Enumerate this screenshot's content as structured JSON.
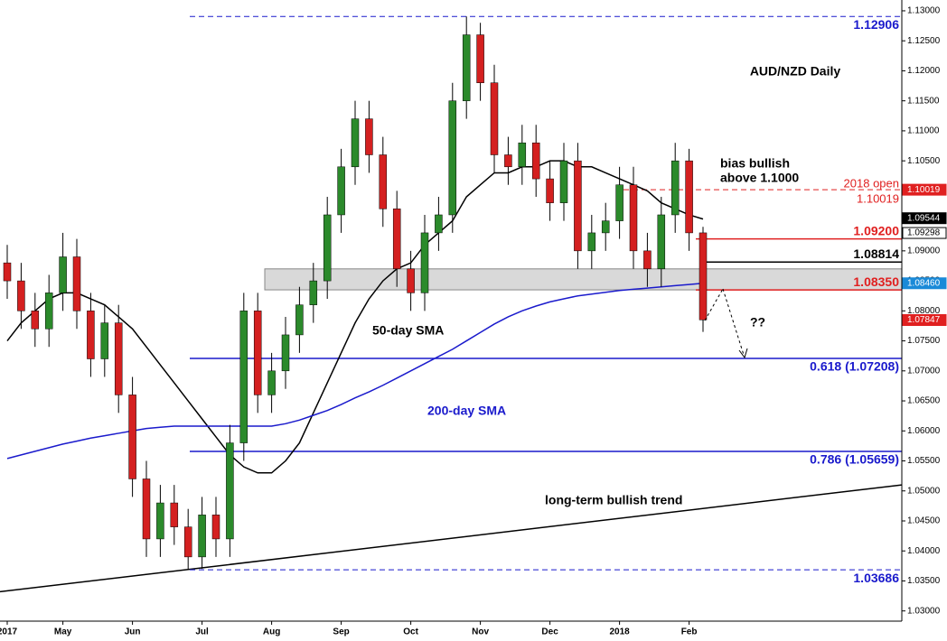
{
  "chart_data": {
    "type": "candlestick",
    "title": "AUD/NZD Daily",
    "categories": [
      "2017",
      null,
      null,
      null,
      "May",
      null,
      null,
      null,
      null,
      "Jun",
      null,
      null,
      null,
      null,
      "Jul",
      null,
      null,
      null,
      null,
      "Aug",
      null,
      null,
      null,
      null,
      "Sep",
      null,
      null,
      null,
      null,
      "Oct",
      null,
      null,
      null,
      null,
      "Nov",
      null,
      null,
      null,
      null,
      "Dec",
      null,
      null,
      null,
      null,
      "2018",
      null,
      null,
      null,
      null,
      "Feb",
      null
    ],
    "open": [
      1.088,
      1.085,
      1.08,
      1.077,
      1.083,
      1.089,
      1.08,
      1.072,
      1.078,
      1.066,
      1.052,
      1.042,
      1.048,
      1.044,
      1.039,
      1.046,
      1.042,
      1.058,
      1.08,
      1.066,
      1.07,
      1.076,
      1.081,
      1.085,
      1.096,
      1.104,
      1.112,
      1.106,
      1.097,
      1.087,
      1.083,
      1.093,
      1.096,
      1.115,
      1.126,
      1.118,
      1.106,
      1.104,
      1.108,
      1.102,
      1.098,
      1.105,
      1.09,
      1.093,
      1.095,
      1.101,
      1.09,
      1.087,
      1.096,
      1.105,
      1.093
    ],
    "high": [
      1.091,
      1.088,
      1.083,
      1.086,
      1.093,
      1.092,
      1.083,
      1.081,
      1.081,
      1.069,
      1.055,
      1.051,
      1.051,
      1.047,
      1.049,
      1.049,
      1.061,
      1.083,
      1.083,
      1.073,
      1.079,
      1.084,
      1.088,
      1.099,
      1.107,
      1.115,
      1.115,
      1.109,
      1.1,
      1.09,
      1.096,
      1.099,
      1.118,
      1.12906,
      1.128,
      1.121,
      1.109,
      1.111,
      1.111,
      1.105,
      1.108,
      1.108,
      1.096,
      1.098,
      1.104,
      1.104,
      1.093,
      1.099,
      1.108,
      1.107,
      1.094
    ],
    "low": [
      1.082,
      1.077,
      1.074,
      1.074,
      1.08,
      1.077,
      1.069,
      1.069,
      1.063,
      1.049,
      1.039,
      1.039,
      1.041,
      1.03686,
      1.037,
      1.039,
      1.039,
      1.055,
      1.063,
      1.063,
      1.067,
      1.073,
      1.078,
      1.082,
      1.093,
      1.101,
      1.103,
      1.094,
      1.084,
      1.08,
      1.08,
      1.09,
      1.093,
      1.112,
      1.115,
      1.103,
      1.101,
      1.101,
      1.099,
      1.095,
      1.095,
      1.087,
      1.087,
      1.09,
      1.092,
      1.087,
      1.084,
      1.084,
      1.093,
      1.09,
      1.0765
    ],
    "close": [
      1.085,
      1.08,
      1.077,
      1.083,
      1.089,
      1.08,
      1.072,
      1.078,
      1.066,
      1.052,
      1.042,
      1.048,
      1.044,
      1.039,
      1.046,
      1.042,
      1.058,
      1.08,
      1.066,
      1.07,
      1.076,
      1.081,
      1.085,
      1.096,
      1.104,
      1.112,
      1.106,
      1.097,
      1.087,
      1.083,
      1.093,
      1.096,
      1.115,
      1.126,
      1.118,
      1.106,
      1.104,
      1.108,
      1.102,
      1.098,
      1.105,
      1.09,
      1.093,
      1.095,
      1.101,
      1.09,
      1.087,
      1.096,
      1.105,
      1.093,
      1.0785
    ],
    "up_color": "#2b8a2b",
    "down_color": "#d42020",
    "series": [
      {
        "name": "50-day SMA",
        "color": "#000000",
        "values": [
          1.075,
          1.078,
          1.08,
          1.082,
          1.083,
          1.083,
          1.082,
          1.081,
          1.079,
          1.077,
          1.074,
          1.071,
          1.068,
          1.065,
          1.062,
          1.059,
          1.056,
          1.054,
          1.053,
          1.053,
          1.055,
          1.058,
          1.063,
          1.068,
          1.073,
          1.078,
          1.082,
          1.085,
          1.087,
          1.088,
          1.091,
          1.093,
          1.095,
          1.099,
          1.101,
          1.103,
          1.103,
          1.104,
          1.104,
          1.105,
          1.105,
          1.104,
          1.104,
          1.103,
          1.102,
          1.101,
          1.1,
          1.098,
          1.097,
          1.096,
          1.0953
        ]
      },
      {
        "name": "200-day SMA",
        "color": "#1a1acc",
        "values": [
          1.0554,
          1.056,
          1.0566,
          1.0572,
          1.0578,
          1.0583,
          1.0588,
          1.0592,
          1.0596,
          1.06,
          1.0604,
          1.0606,
          1.0608,
          1.0608,
          1.0608,
          1.0608,
          1.0608,
          1.0608,
          1.0608,
          1.0608,
          1.0612,
          1.0618,
          1.0626,
          1.0634,
          1.0644,
          1.0655,
          1.0665,
          1.0676,
          1.0688,
          1.07,
          1.0712,
          1.0724,
          1.0736,
          1.075,
          1.0764,
          1.0778,
          1.079,
          1.08,
          1.0808,
          1.0815,
          1.082,
          1.0825,
          1.0828,
          1.0831,
          1.0834,
          1.0836,
          1.0838,
          1.084,
          1.0842,
          1.0844,
          1.0846
        ]
      }
    ],
    "ylim": [
      1.0283,
      1.1318
    ],
    "yticks": [
      {
        "value": 1.03,
        "label": "1.03000"
      },
      {
        "value": 1.035,
        "label": "1.03500"
      },
      {
        "value": 1.04,
        "label": "1.04000"
      },
      {
        "value": 1.045,
        "label": "1.04500"
      },
      {
        "value": 1.05,
        "label": "1.05000"
      },
      {
        "value": 1.055,
        "label": "1.05500"
      },
      {
        "value": 1.06,
        "label": "1.06000"
      },
      {
        "value": 1.065,
        "label": "1.06500"
      },
      {
        "value": 1.07,
        "label": "1.07000"
      },
      {
        "value": 1.075,
        "label": "1.07500"
      },
      {
        "value": 1.08,
        "label": "1.08000"
      },
      {
        "value": 1.085,
        "label": "1.08500"
      },
      {
        "value": 1.09,
        "label": "1.09000"
      },
      {
        "value": 1.095,
        "label": "1.09500"
      },
      {
        "value": 1.1,
        "label": "1.10000"
      },
      {
        "value": 1.105,
        "label": "1.10500"
      },
      {
        "value": 1.11,
        "label": "1.11000"
      },
      {
        "value": 1.115,
        "label": "1.11500"
      },
      {
        "value": 1.12,
        "label": "1.12000"
      },
      {
        "value": 1.125,
        "label": "1.12500"
      },
      {
        "value": 1.13,
        "label": "1.13000"
      }
    ],
    "zone": [
      1.0835,
      1.087
    ],
    "trendline": [
      1.0332,
      1.051
    ],
    "levels": [
      {
        "value": 1.12906,
        "label": "1.12906",
        "color": "#1a1acc",
        "dashed": true
      },
      {
        "value": 1.10019,
        "label": "1.10019",
        "color": "#e02020",
        "dashed": true
      },
      {
        "value": 1.092,
        "label": "1.09200",
        "color": "#e02020",
        "dashed": false
      },
      {
        "value": 1.08814,
        "label": "1.08814",
        "color": "#000000",
        "dashed": false
      },
      {
        "value": 1.0835,
        "label": "1.08350",
        "color": "#e02020",
        "dashed": false
      },
      {
        "value": 1.07208,
        "label": "0.618 (1.07208)",
        "color": "#1a1acc",
        "dashed": false
      },
      {
        "value": 1.05659,
        "label": "0.786 (1.05659)",
        "color": "#1a1acc",
        "dashed": false
      },
      {
        "value": 1.03686,
        "label": "1.03686",
        "color": "#1a1acc",
        "dashed": true
      }
    ],
    "price_labels": {
      "values": [
        1.10019,
        1.09544,
        1.09298,
        1.0846,
        1.07847
      ],
      "value_labels": [
        "1.10019",
        "1.09544",
        "1.09298",
        "1.08460",
        "1.07847"
      ],
      "colors": [
        "#e02020",
        "#000000",
        "#ffffff",
        "#1a8ad8",
        "#e02020"
      ]
    },
    "annotations": {
      "bias_1": "bias bullish",
      "bias_2": "above 1.1000",
      "open_2018": "2018 open",
      "sma50": "50-day SMA",
      "sma200": "200-day SMA",
      "trend": "long-term bullish trend",
      "question": "??"
    }
  }
}
